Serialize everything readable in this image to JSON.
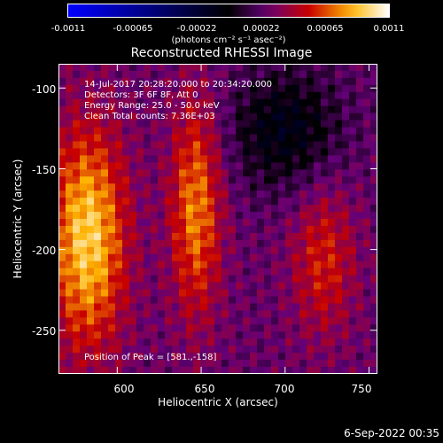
{
  "chart_data": {
    "type": "heatmap",
    "title": "Reconstructed RHESSI Image",
    "xlabel": "Heliocentric X (arcsec)",
    "ylabel": "Heliocentric Y (arcsec)",
    "xlim": [
      565,
      755
    ],
    "ylim": [
      -277,
      -85
    ],
    "x_ticks": [
      600,
      650,
      700,
      750
    ],
    "y_ticks": [
      -100,
      -150,
      -200,
      -250
    ],
    "colorbar": {
      "min": -0.0011,
      "max": 0.0011,
      "tick_labels": [
        "-0.0011",
        "-0.00065",
        "-0.00022",
        "0.00022",
        "0.00065",
        "0.0011"
      ],
      "units": "(photons cm⁻² s⁻¹ asec⁻²)"
    },
    "peak_position": [
      581,
      -158
    ]
  },
  "annotations": {
    "time_range": "14-Jul-2017 20:28:20.000 to 20:34:20.000",
    "detectors": "Detectors: 3F 6F 8F, Att 0",
    "energy_range": "Energy Range: 25.0 - 50.0 keV",
    "algorithm": "Clean    Total counts: 7.36E+03",
    "peak": "Position of Peak = [581.,-158]"
  },
  "footer": {
    "date": "6-Sep-2022 00:35"
  }
}
